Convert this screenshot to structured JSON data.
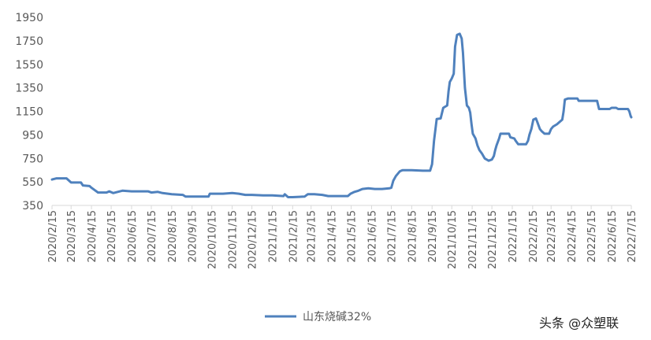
{
  "chart_data": {
    "type": "line",
    "title": "",
    "xlabel": "",
    "ylabel": "",
    "ylim": [
      350,
      1950
    ],
    "y_ticks": [
      350,
      550,
      750,
      950,
      1150,
      1350,
      1550,
      1750,
      1950
    ],
    "x_ticks": [
      "2020/2/15",
      "2020/3/15",
      "2020/4/15",
      "2020/5/15",
      "2020/6/15",
      "2020/7/15",
      "2020/8/15",
      "2020/9/15",
      "2020/10/15",
      "2020/11/15",
      "2020/12/15",
      "2021/1/15",
      "2021/2/15",
      "2021/3/15",
      "2021/4/15",
      "2021/5/15",
      "2021/6/15",
      "2021/7/15",
      "2021/8/15",
      "2021/9/15",
      "2021/10/15",
      "2021/11/15",
      "2021/12/15",
      "2022/1/15",
      "2022/2/15",
      "2022/3/15",
      "2022/4/15",
      "2022/5/15",
      "2022/6/15",
      "2022/7/15"
    ],
    "grid": false,
    "legend_position": "bottom",
    "series": [
      {
        "name": "山东烧碱32%",
        "color": "#4f81bd",
        "points": [
          [
            "2020/2/15",
            570
          ],
          [
            "2020/2/22",
            580
          ],
          [
            "2020/3/8",
            580
          ],
          [
            "2020/3/12",
            560
          ],
          [
            "2020/3/15",
            545
          ],
          [
            "2020/3/30",
            545
          ],
          [
            "2020/4/2",
            520
          ],
          [
            "2020/4/12",
            515
          ],
          [
            "2020/4/15",
            500
          ],
          [
            "2020/4/20",
            480
          ],
          [
            "2020/4/25",
            460
          ],
          [
            "2020/5/8",
            460
          ],
          [
            "2020/5/12",
            470
          ],
          [
            "2020/5/18",
            455
          ],
          [
            "2020/5/25",
            465
          ],
          [
            "2020/6/1",
            475
          ],
          [
            "2020/6/15",
            470
          ],
          [
            "2020/7/10",
            470
          ],
          [
            "2020/7/15",
            460
          ],
          [
            "2020/7/25",
            465
          ],
          [
            "2020/8/1",
            455
          ],
          [
            "2020/8/15",
            445
          ],
          [
            "2020/9/1",
            440
          ],
          [
            "2020/9/5",
            425
          ],
          [
            "2020/9/15",
            425
          ],
          [
            "2020/10/10",
            425
          ],
          [
            "2020/10/12",
            450
          ],
          [
            "2020/11/1",
            450
          ],
          [
            "2020/11/15",
            455
          ],
          [
            "2020/11/25",
            450
          ],
          [
            "2020/12/5",
            440
          ],
          [
            "2020/12/15",
            440
          ],
          [
            "2021/1/1",
            435
          ],
          [
            "2021/1/15",
            435
          ],
          [
            "2021/2/1",
            430
          ],
          [
            "2021/2/3",
            445
          ],
          [
            "2021/2/8",
            420
          ],
          [
            "2021/2/15",
            420
          ],
          [
            "2021/3/5",
            425
          ],
          [
            "2021/3/10",
            445
          ],
          [
            "2021/3/20",
            445
          ],
          [
            "2021/4/1",
            440
          ],
          [
            "2021/4/10",
            430
          ],
          [
            "2021/4/20",
            430
          ],
          [
            "2021/5/1",
            430
          ],
          [
            "2021/5/10",
            430
          ],
          [
            "2021/5/14",
            450
          ],
          [
            "2021/5/20",
            465
          ],
          [
            "2021/5/26",
            475
          ],
          [
            "2021/6/1",
            490
          ],
          [
            "2021/6/10",
            495
          ],
          [
            "2021/6/20",
            490
          ],
          [
            "2021/7/1",
            490
          ],
          [
            "2021/7/12",
            495
          ],
          [
            "2021/7/15",
            500
          ],
          [
            "2021/7/18",
            560
          ],
          [
            "2021/7/22",
            600
          ],
          [
            "2021/7/28",
            640
          ],
          [
            "2021/8/1",
            650
          ],
          [
            "2021/8/15",
            650
          ],
          [
            "2021/9/1",
            645
          ],
          [
            "2021/9/12",
            645
          ],
          [
            "2021/9/15",
            700
          ],
          [
            "2021/9/18",
            900
          ],
          [
            "2021/9/22",
            1085
          ],
          [
            "2021/9/28",
            1090
          ],
          [
            "2021/10/2",
            1180
          ],
          [
            "2021/10/8",
            1200
          ],
          [
            "2021/10/10",
            1320
          ],
          [
            "2021/10/12",
            1400
          ],
          [
            "2021/10/15",
            1430
          ],
          [
            "2021/10/18",
            1470
          ],
          [
            "2021/10/20",
            1700
          ],
          [
            "2021/10/23",
            1800
          ],
          [
            "2021/10/27",
            1810
          ],
          [
            "2021/10/30",
            1770
          ],
          [
            "2021/11/1",
            1650
          ],
          [
            "2021/11/4",
            1350
          ],
          [
            "2021/11/7",
            1200
          ],
          [
            "2021/11/10",
            1180
          ],
          [
            "2021/11/12",
            1140
          ],
          [
            "2021/11/14",
            1040
          ],
          [
            "2021/11/16",
            960
          ],
          [
            "2021/11/20",
            920
          ],
          [
            "2021/11/23",
            860
          ],
          [
            "2021/11/26",
            820
          ],
          [
            "2021/11/30",
            790
          ],
          [
            "2021/12/4",
            750
          ],
          [
            "2021/12/10",
            730
          ],
          [
            "2021/12/15",
            740
          ],
          [
            "2021/12/18",
            770
          ],
          [
            "2021/12/20",
            820
          ],
          [
            "2021/12/22",
            860
          ],
          [
            "2021/12/26",
            920
          ],
          [
            "2021/12/28",
            960
          ],
          [
            "2022/1/10",
            960
          ],
          [
            "2022/1/12",
            930
          ],
          [
            "2022/1/18",
            920
          ],
          [
            "2022/1/20",
            900
          ],
          [
            "2022/1/24",
            870
          ],
          [
            "2022/2/5",
            870
          ],
          [
            "2022/2/8",
            900
          ],
          [
            "2022/2/10",
            950
          ],
          [
            "2022/2/13",
            1000
          ],
          [
            "2022/2/16",
            1080
          ],
          [
            "2022/2/20",
            1090
          ],
          [
            "2022/2/22",
            1060
          ],
          [
            "2022/2/26",
            1000
          ],
          [
            "2022/3/1",
            980
          ],
          [
            "2022/3/5",
            960
          ],
          [
            "2022/3/12",
            960
          ],
          [
            "2022/3/15",
            1000
          ],
          [
            "2022/3/18",
            1020
          ],
          [
            "2022/3/24",
            1040
          ],
          [
            "2022/3/28",
            1060
          ],
          [
            "2022/4/1",
            1080
          ],
          [
            "2022/4/3",
            1150
          ],
          [
            "2022/4/5",
            1250
          ],
          [
            "2022/4/10",
            1260
          ],
          [
            "2022/4/24",
            1260
          ],
          [
            "2022/4/26",
            1240
          ],
          [
            "2022/5/24",
            1240
          ],
          [
            "2022/5/27",
            1170
          ],
          [
            "2022/6/12",
            1170
          ],
          [
            "2022/6/15",
            1180
          ],
          [
            "2022/6/22",
            1180
          ],
          [
            "2022/6/25",
            1170
          ],
          [
            "2022/7/10",
            1170
          ],
          [
            "2022/7/12",
            1150
          ],
          [
            "2022/7/14",
            1110
          ],
          [
            "2022/7/15",
            1100
          ]
        ]
      }
    ]
  },
  "watermark": "头条 @众塑联"
}
